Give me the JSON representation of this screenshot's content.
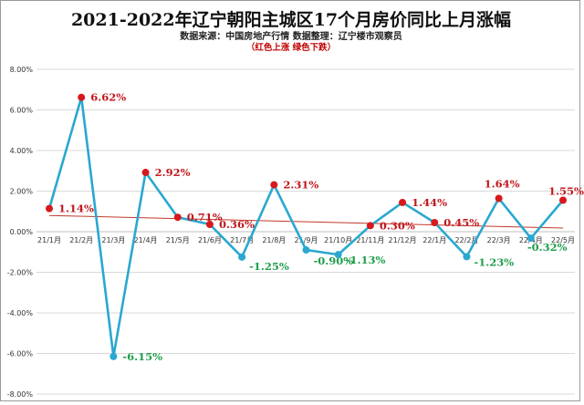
{
  "chart_data": {
    "type": "line",
    "title": "2021-2022年辽宁朝阳主城区17个月房价同比上月涨幅",
    "subtitle": "数据来源：中国房地产行情  数据整理：辽宁楼市观察员",
    "note": "（红色上涨  绿色下跌）",
    "categories": [
      "21/1月",
      "21/2月",
      "21/3月",
      "21/4月",
      "21/5月",
      "21/6月",
      "21/7月",
      "21/8月",
      "21/9月",
      "21/10月",
      "21/11月",
      "21/12月",
      "22/1月",
      "22/2月",
      "22/3月",
      "22/4月",
      "22/5月"
    ],
    "series": [
      {
        "values": [
          1.14,
          6.62,
          -6.15,
          2.92,
          0.71,
          0.36,
          -1.25,
          2.31,
          -0.9,
          -1.13,
          0.3,
          1.44,
          0.45,
          -1.23,
          1.64,
          -0.32,
          1.55
        ],
        "labels": [
          "1.14%",
          "6.62%",
          "-6.15%",
          "2.92%",
          "0.71%",
          "0.36%",
          "-1.25%",
          "2.31%",
          "-0.90%",
          "-1.13%",
          "0.30%",
          "1.44%",
          "0.45%",
          "-1.23%",
          "1.64%",
          "-0.32%",
          "1.55%"
        ]
      }
    ],
    "trendline": {
      "start": 0.8,
      "end": 0.18
    },
    "ylim": [
      -8,
      8
    ],
    "yticks": [
      "8.00%",
      "6.00%",
      "4.00%",
      "2.00%",
      "0.00%",
      "-2.00%",
      "-4.00%",
      "-6.00%",
      "-8.00%"
    ],
    "grid": true,
    "colors": {
      "line": "#29a8d0",
      "up": "#c0161c",
      "down": "#1e9e4a",
      "trend": "#c0392b",
      "grid": "#d9d9d9"
    }
  }
}
